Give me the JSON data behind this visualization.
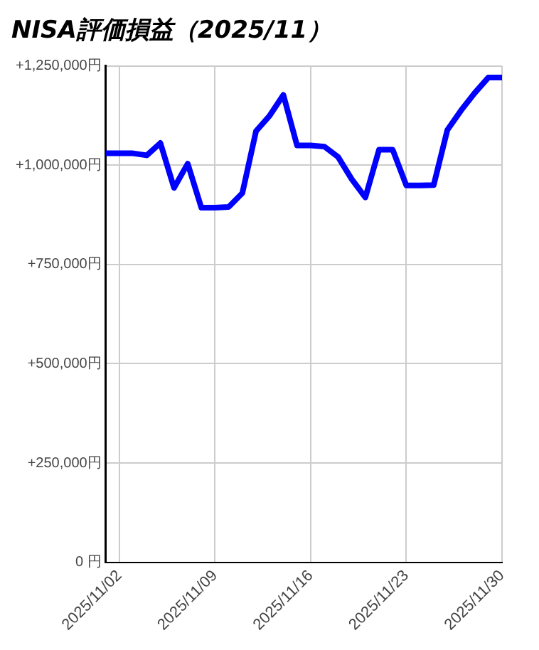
{
  "chart_data": {
    "type": "line",
    "title": "NISA評価損益（2025/11）",
    "x": [
      "2025-11-01",
      "2025-11-02",
      "2025-11-03",
      "2025-11-04",
      "2025-11-05",
      "2025-11-06",
      "2025-11-07",
      "2025-11-08",
      "2025-11-09",
      "2025-11-10",
      "2025-11-11",
      "2025-11-12",
      "2025-11-13",
      "2025-11-14",
      "2025-11-15",
      "2025-11-16",
      "2025-11-17",
      "2025-11-18",
      "2025-11-19",
      "2025-11-20",
      "2025-11-21",
      "2025-11-22",
      "2025-11-23",
      "2025-11-24",
      "2025-11-25",
      "2025-11-26",
      "2025-11-27",
      "2025-11-28",
      "2025-11-29",
      "2025-11-30"
    ],
    "series": [
      {
        "color": "#0000ff",
        "values": [
          1030000,
          1030000,
          1030000,
          1025000,
          1056000,
          943000,
          1004000,
          893000,
          893000,
          895000,
          930000,
          1086000,
          1125000,
          1177000,
          1050000,
          1050000,
          1047000,
          1021000,
          965000,
          919000,
          1039000,
          1039000,
          949000,
          949000,
          950000,
          1089000,
          1138000,
          1182000,
          1221000,
          1221000
        ]
      }
    ],
    "xlim": [
      "2025-11-01",
      "2025-11-30"
    ],
    "xticks": [
      {
        "value": "2025-11-02",
        "label": "2025/11/02"
      },
      {
        "value": "2025-11-09",
        "label": "2025/11/09"
      },
      {
        "value": "2025-11-16",
        "label": "2025/11/16"
      },
      {
        "value": "2025-11-23",
        "label": "2025/11/23"
      },
      {
        "value": "2025-11-30",
        "label": "2025/11/30"
      }
    ],
    "ylim": [
      0,
      1250000
    ],
    "yticks": [
      {
        "value": 0,
        "label": "0 円"
      },
      {
        "value": 250000,
        "label": "+250,000円"
      },
      {
        "value": 500000,
        "label": "+500,000円"
      },
      {
        "value": 750000,
        "label": "+750,000円"
      },
      {
        "value": 1000000,
        "label": "+1,000,000円"
      },
      {
        "value": 1250000,
        "label": "+1,250,000円"
      }
    ],
    "grid": true,
    "legend": false,
    "marker": "none",
    "line_style": "solid"
  }
}
